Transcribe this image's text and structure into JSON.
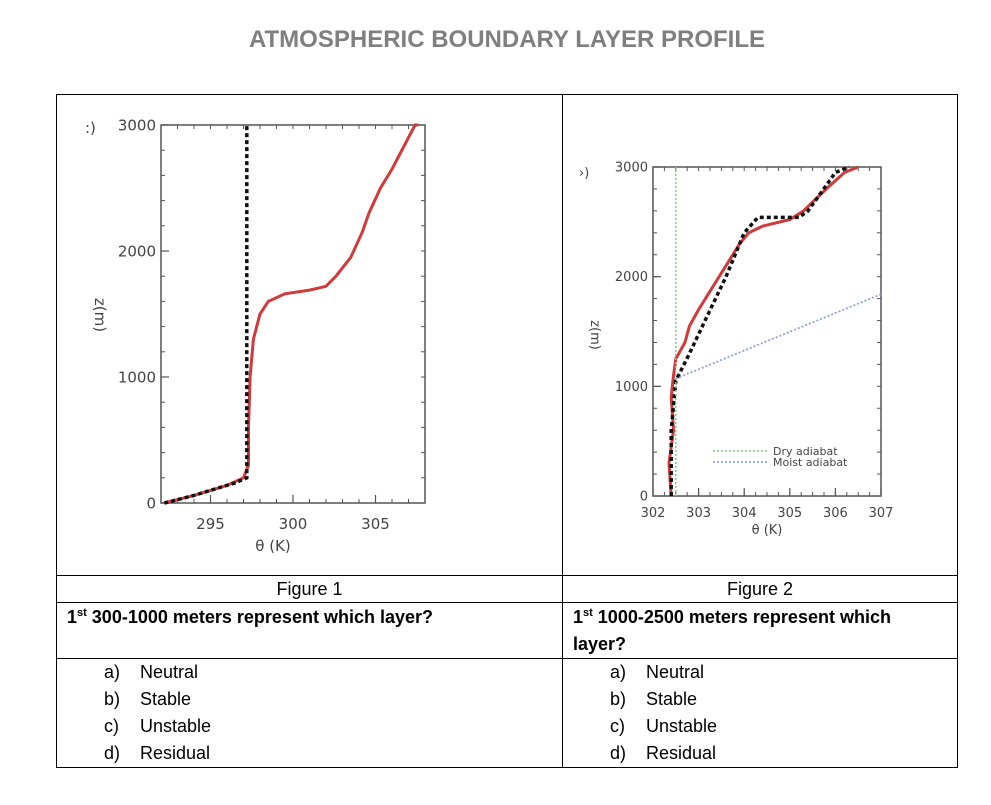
{
  "page_title": "ATMOSPHERIC BOUNDARY LAYER PROFILE",
  "figures": [
    {
      "caption": "Figure 1",
      "panel_label": ":)",
      "xlabel": "θ (K)",
      "ylabel": "z(m)",
      "x_ticks": [
        "295",
        "300",
        "305"
      ],
      "y_ticks": [
        "0",
        "1000",
        "2000",
        "3000"
      ]
    },
    {
      "caption": "Figure 2",
      "panel_label": "›)",
      "xlabel": "θ (K)",
      "ylabel": "z(m)",
      "x_ticks": [
        "302",
        "303",
        "304",
        "305",
        "306",
        "307"
      ],
      "y_ticks": [
        "0",
        "1000",
        "2000",
        "3000"
      ],
      "legend": [
        "Dry adiabat",
        "Moist adiabat"
      ]
    }
  ],
  "questions": [
    {
      "ord": "1",
      "sup": "st",
      "text": " 300-1000 meters represent which layer?",
      "options": [
        {
          "letter": "a)",
          "text": "Neutral"
        },
        {
          "letter": "b)",
          "text": "Stable"
        },
        {
          "letter": "c)",
          "text": "Unstable"
        },
        {
          "letter": "d)",
          "text": "Residual"
        }
      ]
    },
    {
      "ord": "1",
      "sup": "st",
      "text": " 1000-2500 meters represent which layer?",
      "options": [
        {
          "letter": "a)",
          "text": "Neutral"
        },
        {
          "letter": "b)",
          "text": "Stable"
        },
        {
          "letter": "c)",
          "text": "Unstable"
        },
        {
          "letter": "d)",
          "text": "Residual"
        }
      ]
    }
  ],
  "colors": {
    "title": "#7f7f7f",
    "profile": "#d03a3a",
    "fit": "#111111",
    "dry_adiabat": "#7ccf7c",
    "moist_adiabat": "#8fa0d8"
  },
  "chart_data": [
    {
      "type": "line",
      "xlim": [
        292,
        308
      ],
      "ylim": [
        0,
        3000
      ],
      "xlabel": "θ (K)",
      "ylabel": "z(m)",
      "series": [
        {
          "style": "solid red",
          "x": [
            292.2,
            294,
            296,
            297,
            297.3,
            297.3,
            297.4,
            297.6,
            298,
            298.5,
            299.5,
            301,
            302,
            302.6,
            303.5,
            304.2,
            304.6,
            305.3,
            306,
            306.4,
            307,
            307.4,
            307.6
          ],
          "y": [
            0,
            60,
            140,
            200,
            300,
            600,
            1000,
            1300,
            1500,
            1600,
            1660,
            1690,
            1720,
            1800,
            1950,
            2150,
            2300,
            2500,
            2650,
            2750,
            2900,
            3000,
            3000
          ]
        },
        {
          "style": "dotted black",
          "x": [
            292.2,
            294,
            296.5,
            297.2,
            297.2,
            297.2
          ],
          "y": [
            0,
            60,
            160,
            200,
            1000,
            3000
          ]
        }
      ]
    },
    {
      "type": "line",
      "xlim": [
        302,
        307
      ],
      "ylim": [
        0,
        3000
      ],
      "xlabel": "θ (K)",
      "ylabel": "z(m)",
      "series": [
        {
          "style": "solid red",
          "x": [
            302.4,
            302.35,
            302.45,
            302.4,
            302.45,
            302.5,
            302.7,
            302.8,
            303,
            303.3,
            303.6,
            303.9,
            304.1,
            304.4,
            305,
            305.3,
            305.8,
            306.2,
            306.5
          ],
          "y": [
            0,
            300,
            600,
            900,
            1100,
            1250,
            1400,
            1550,
            1700,
            1900,
            2100,
            2300,
            2400,
            2460,
            2520,
            2600,
            2800,
            2950,
            3000
          ]
        },
        {
          "style": "dotted black",
          "x": [
            302.4,
            302.4,
            302.5,
            302.8,
            303.2,
            303.6,
            304.0,
            304.3,
            305.2,
            305.4,
            306.0,
            306.3
          ],
          "y": [
            0,
            600,
            1050,
            1300,
            1650,
            2000,
            2400,
            2540,
            2540,
            2600,
            2950,
            3000
          ]
        },
        {
          "name": "Dry adiabat",
          "style": "dotted green",
          "x": [
            302.5,
            302.5
          ],
          "y": [
            0,
            3000
          ]
        },
        {
          "name": "Moist adiabat",
          "style": "dotted blue",
          "x": [
            302.5,
            307
          ],
          "y": [
            1070,
            1840
          ]
        }
      ]
    }
  ]
}
